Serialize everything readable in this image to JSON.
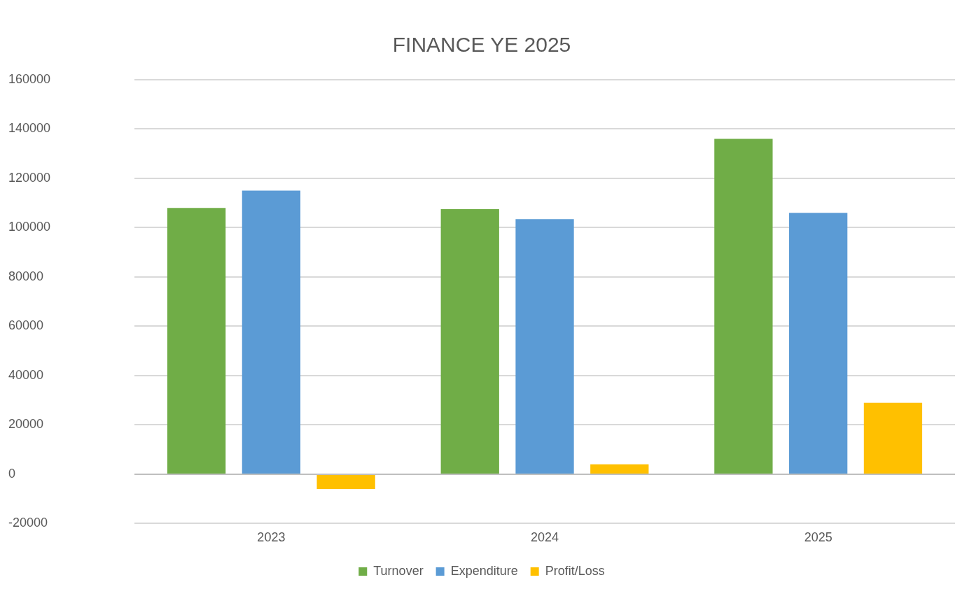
{
  "chart_data": {
    "type": "bar",
    "title": "FINANCE YE 2025",
    "categories": [
      "2023",
      "2024",
      "2025"
    ],
    "series": [
      {
        "name": "Turnover",
        "color": "#70ad47",
        "values": [
          108000,
          107500,
          136000
        ]
      },
      {
        "name": "Expenditure",
        "color": "#5b9bd5",
        "values": [
          115000,
          103500,
          106000
        ]
      },
      {
        "name": "Profit/Loss",
        "color": "#ffc000",
        "values": [
          -6000,
          4000,
          29000
        ]
      }
    ],
    "ylim": [
      -20000,
      160000
    ],
    "yticks": [
      -20000,
      0,
      20000,
      40000,
      60000,
      80000,
      100000,
      120000,
      140000,
      160000
    ],
    "grid": "y",
    "legend": "bottom"
  }
}
